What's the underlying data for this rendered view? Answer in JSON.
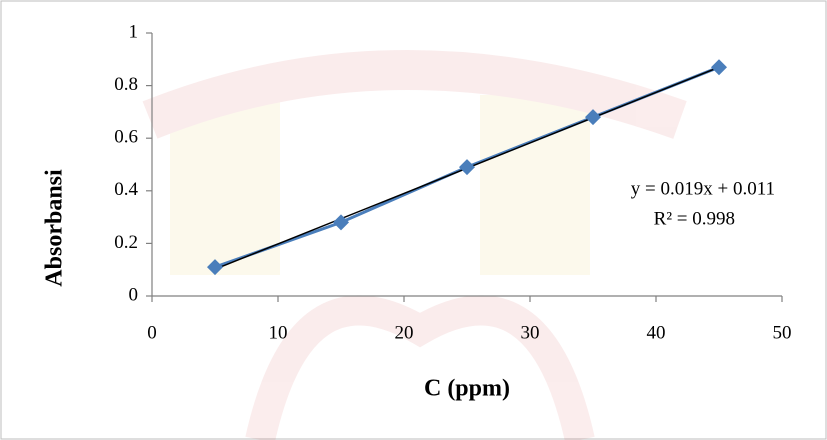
{
  "chart_data": {
    "type": "scatter-line",
    "x_label": "C (ppm)",
    "y_label": "Absorbansi",
    "x": [
      5,
      15,
      25,
      35,
      45
    ],
    "values": [
      0.11,
      0.28,
      0.49,
      0.68,
      0.87
    ],
    "color": "#4a7ebb",
    "trendline": true,
    "annotations": [
      "y = 0.019x + 0.011",
      "R² = 0.998"
    ],
    "xlim": [
      0,
      50
    ],
    "xticks": [
      0,
      10,
      20,
      30,
      40,
      50
    ],
    "ylim": [
      0,
      1
    ],
    "yticks": [
      0,
      0.2,
      0.4,
      0.6,
      0.8,
      1
    ],
    "grid": false
  }
}
